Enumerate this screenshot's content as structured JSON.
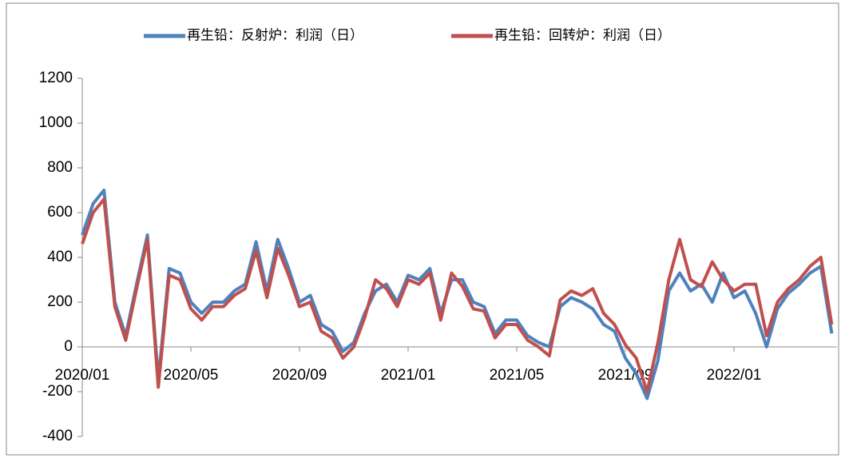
{
  "chart_data": {
    "type": "line",
    "categories": [
      "2020/01",
      null,
      null,
      null,
      null,
      null,
      null,
      null,
      null,
      null,
      "2020/05",
      null,
      null,
      null,
      null,
      null,
      null,
      null,
      null,
      null,
      "2020/09",
      null,
      null,
      null,
      null,
      null,
      null,
      null,
      null,
      null,
      "2021/01",
      null,
      null,
      null,
      null,
      null,
      null,
      null,
      null,
      null,
      "2021/05",
      null,
      null,
      null,
      null,
      null,
      null,
      null,
      null,
      null,
      "2021/09",
      null,
      null,
      null,
      null,
      null,
      null,
      null,
      null,
      null,
      "2022/01",
      null,
      null,
      null,
      null,
      null,
      null,
      null,
      null,
      null
    ],
    "series": [
      {
        "name": "再生铅：反射炉：利润（日）",
        "color": "#4f81bd",
        "values": [
          500,
          640,
          700,
          200,
          50,
          280,
          500,
          -150,
          350,
          330,
          200,
          150,
          200,
          200,
          250,
          280,
          470,
          250,
          480,
          350,
          200,
          230,
          100,
          70,
          -20,
          20,
          150,
          250,
          280,
          200,
          320,
          300,
          350,
          150,
          300,
          300,
          200,
          180,
          60,
          120,
          120,
          50,
          20,
          0,
          180,
          220,
          200,
          170,
          100,
          70,
          -50,
          -120,
          -230,
          -60,
          250,
          330,
          250,
          280,
          200,
          330,
          220,
          250,
          150,
          0,
          170,
          240,
          280,
          330,
          360,
          60
        ]
      },
      {
        "name": "再生铅：回转炉：利润（日）",
        "color": "#c0504d",
        "values": [
          460,
          600,
          660,
          180,
          30,
          260,
          480,
          -180,
          320,
          300,
          170,
          120,
          180,
          180,
          230,
          260,
          430,
          220,
          440,
          320,
          180,
          200,
          70,
          40,
          -50,
          0,
          130,
          300,
          260,
          180,
          300,
          280,
          330,
          120,
          330,
          270,
          170,
          160,
          40,
          100,
          100,
          30,
          0,
          -40,
          210,
          250,
          230,
          260,
          150,
          100,
          10,
          -50,
          -200,
          20,
          300,
          480,
          300,
          270,
          380,
          300,
          250,
          280,
          280,
          50,
          200,
          260,
          300,
          360,
          400,
          100
        ]
      }
    ],
    "ylim": [
      -400,
      1200
    ],
    "yticks": [
      -400,
      -200,
      0,
      200,
      400,
      600,
      800,
      1000,
      1200
    ]
  }
}
